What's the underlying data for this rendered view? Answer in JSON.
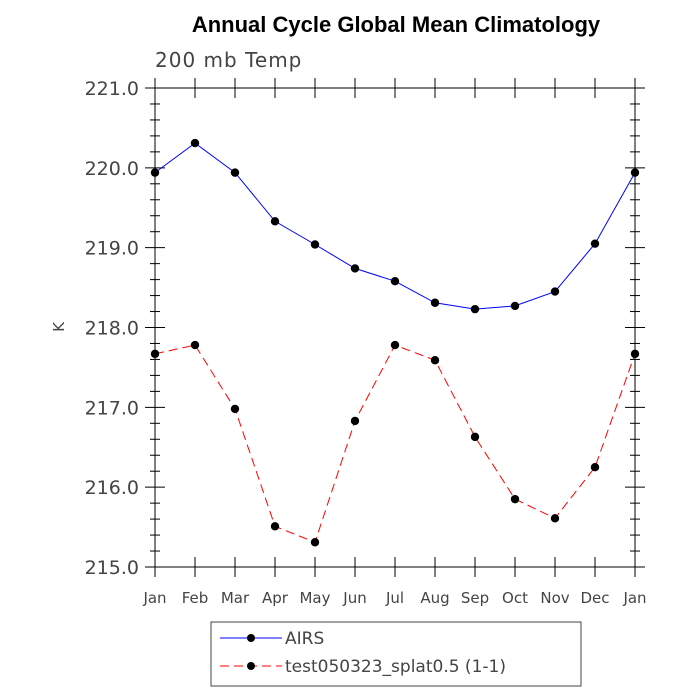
{
  "chart_data": {
    "type": "line",
    "title": "Annual Cycle Global Mean Climatology",
    "subtitle": "200 mb Temp",
    "xlabel": "",
    "ylabel": "K",
    "categories": [
      "Jan",
      "Feb",
      "Mar",
      "Apr",
      "May",
      "Jun",
      "Jul",
      "Aug",
      "Sep",
      "Oct",
      "Nov",
      "Dec",
      "Jan"
    ],
    "ylim": [
      215.0,
      221.0
    ],
    "yticks": [
      "215.0",
      "216.0",
      "217.0",
      "218.0",
      "219.0",
      "220.0",
      "221.0"
    ],
    "grid": false,
    "legend_position": "bottom",
    "series": [
      {
        "name": "AIRS",
        "color": "#0000ff",
        "style": "solid",
        "values": [
          219.94,
          220.31,
          219.94,
          219.33,
          219.04,
          218.74,
          218.58,
          218.31,
          218.23,
          218.27,
          218.45,
          219.05,
          219.94
        ]
      },
      {
        "name": "test050323_splat0.5 (1-1)",
        "color": "#ff0000",
        "style": "dashed",
        "values": [
          217.67,
          217.78,
          216.98,
          215.51,
          215.31,
          216.83,
          217.78,
          217.59,
          216.63,
          215.85,
          215.61,
          216.25,
          217.67
        ]
      }
    ]
  }
}
